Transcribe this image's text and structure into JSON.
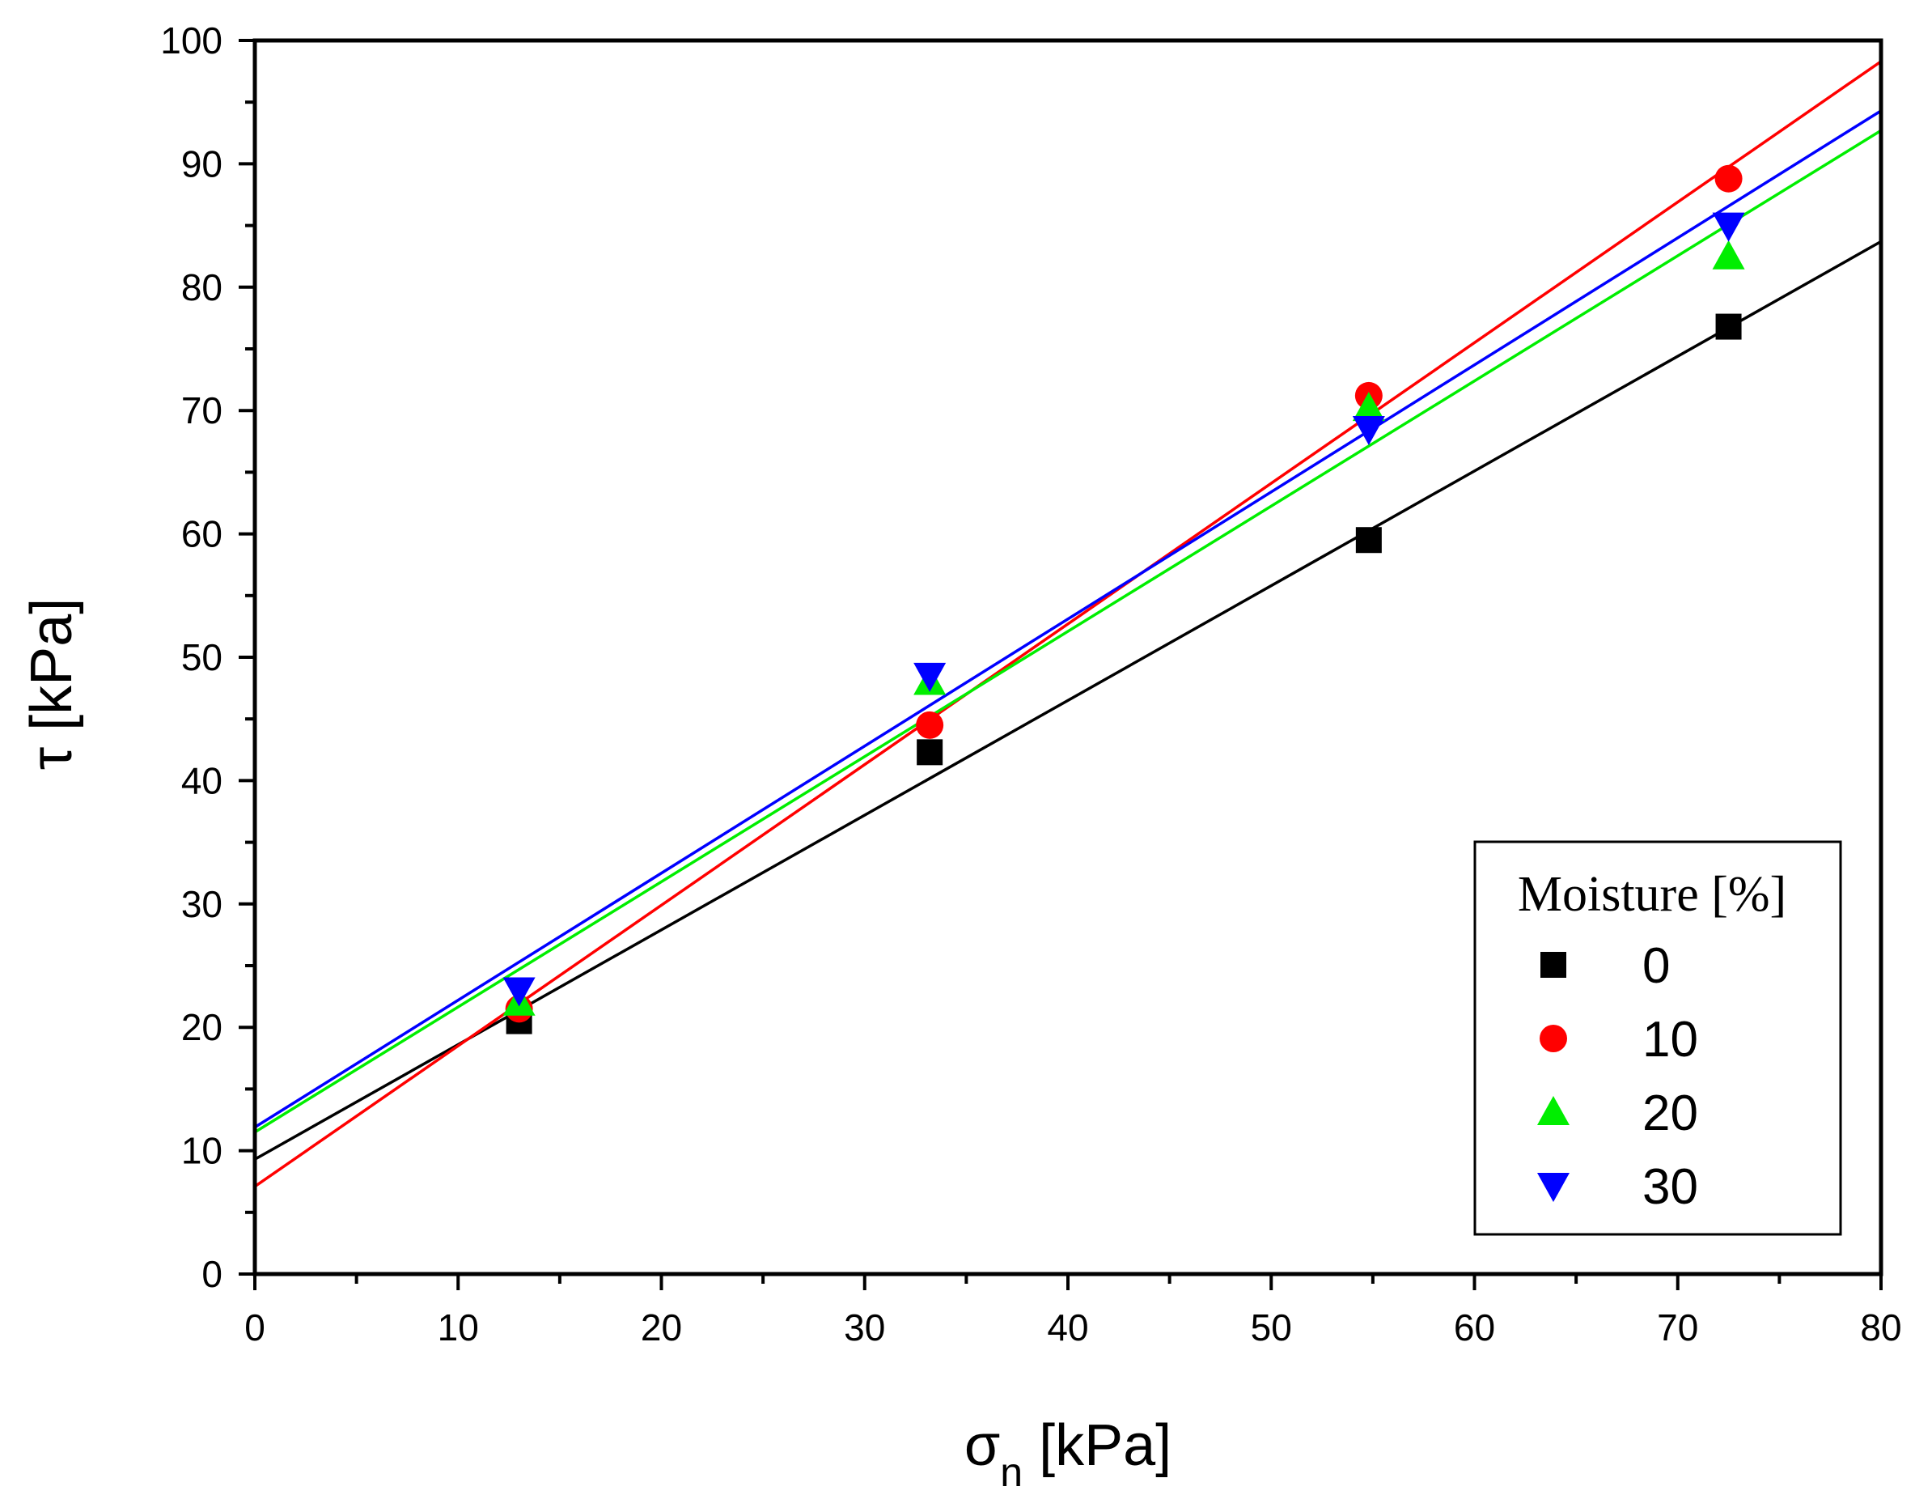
{
  "chart_data": {
    "type": "scatter",
    "xlabel_symbol": "σ",
    "xlabel_subscript": "n",
    "xlabel_unit": " [kPa]",
    "ylabel": "τ [kPa]",
    "xlim": [
      0,
      80
    ],
    "ylim": [
      0,
      100
    ],
    "x_ticks": [
      0,
      10,
      20,
      30,
      40,
      50,
      60,
      70,
      80
    ],
    "y_ticks": [
      0,
      10,
      20,
      30,
      40,
      50,
      60,
      70,
      80,
      90,
      100
    ],
    "x_tick_labels": [
      "0",
      "10",
      "20",
      "30",
      "40",
      "50",
      "60",
      "70",
      "80"
    ],
    "y_tick_labels": [
      "0",
      "10",
      "20",
      "30",
      "40",
      "50",
      "60",
      "70",
      "80",
      "90",
      "100"
    ],
    "grid": false,
    "legend": {
      "title": "Moisture [%]",
      "position": "bottom-right"
    },
    "series": [
      {
        "name": "0",
        "color": "#000000",
        "marker": "square",
        "x": [
          13.0,
          33.2,
          54.8,
          72.5
        ],
        "y": [
          20.5,
          42.3,
          59.5,
          76.8
        ],
        "fit": {
          "intercept": 9.3,
          "slope": 0.93
        }
      },
      {
        "name": "10",
        "color": "#ff0000",
        "marker": "circle",
        "x": [
          13.0,
          33.2,
          54.8,
          72.5
        ],
        "y": [
          21.5,
          44.5,
          71.2,
          88.8
        ],
        "fit": {
          "intercept": 7.1,
          "slope": 1.14
        }
      },
      {
        "name": "20",
        "color": "#00ee00",
        "marker": "triangle-up",
        "x": [
          13.0,
          33.2,
          54.8,
          72.5
        ],
        "y": [
          22.0,
          48.0,
          70.2,
          82.5
        ],
        "fit": {
          "intercept": 11.5,
          "slope": 1.015
        }
      },
      {
        "name": "30",
        "color": "#0000ff",
        "marker": "triangle-down",
        "x": [
          13.0,
          33.2,
          54.8,
          72.5
        ],
        "y": [
          23.0,
          48.5,
          68.5,
          85.0
        ],
        "fit": {
          "intercept": 11.9,
          "slope": 1.03
        }
      }
    ]
  }
}
